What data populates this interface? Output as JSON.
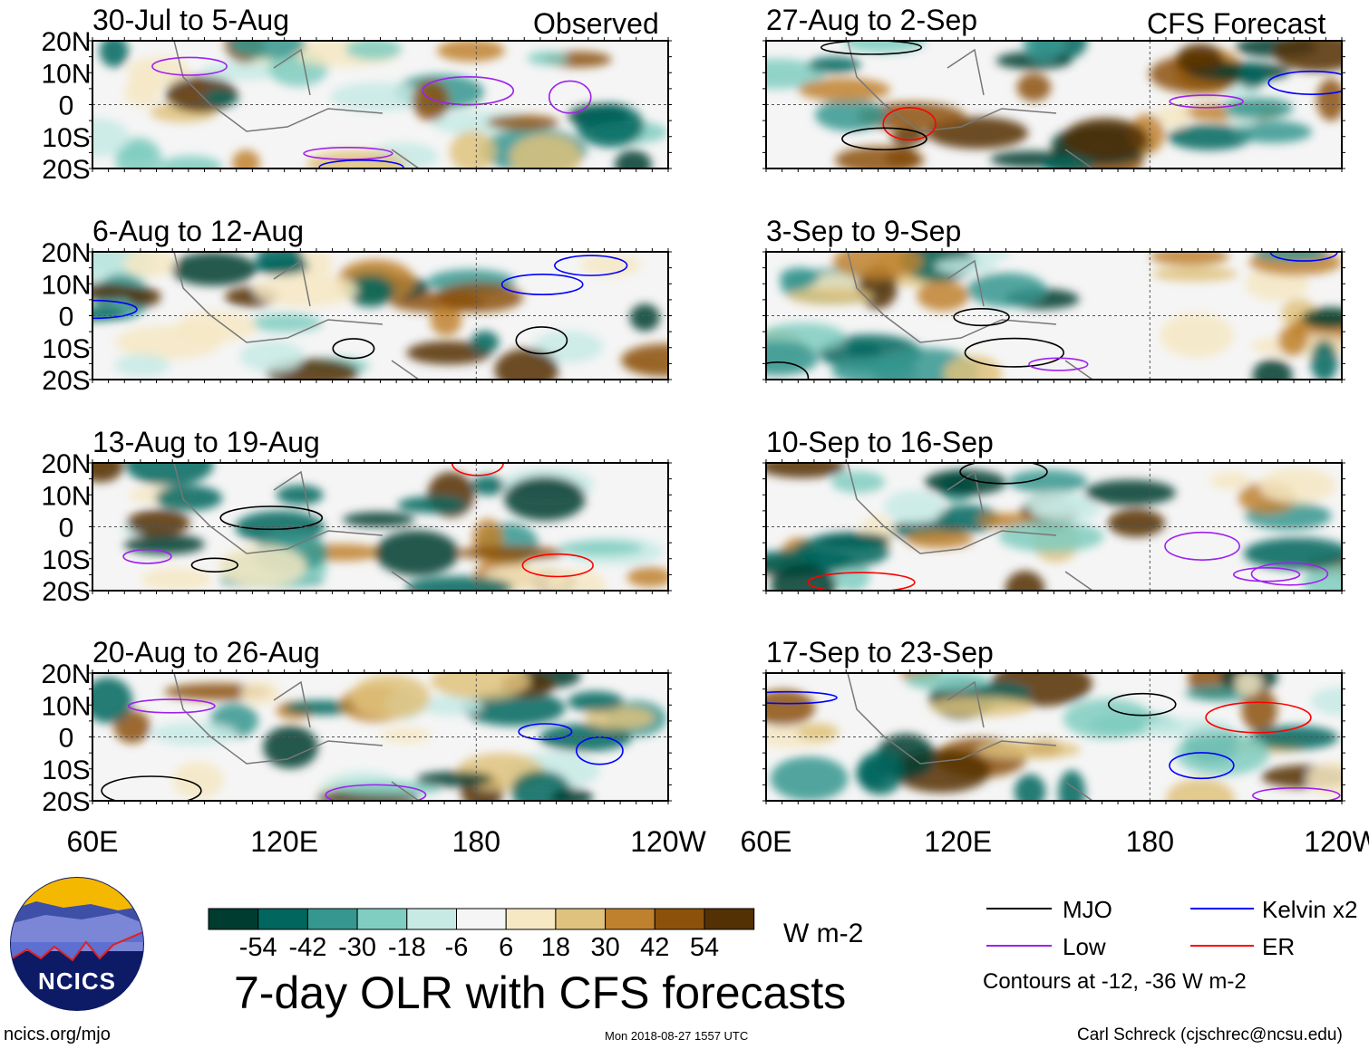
{
  "chart_data": {
    "type": "heatmap",
    "title": "7-day OLR with CFS forecasts",
    "units": "W m-2",
    "column_labels": [
      "Observed",
      "CFS Forecast"
    ],
    "panels_observed": [
      "30-Jul to 5-Aug",
      "6-Aug to 12-Aug",
      "13-Aug to 19-Aug",
      "20-Aug to 26-Aug"
    ],
    "panels_forecast": [
      "27-Aug to 2-Sep",
      "3-Sep to 9-Sep",
      "10-Sep to 16-Sep",
      "17-Sep to 23-Sep"
    ],
    "lat_ticks": [
      "20N",
      "10N",
      "0",
      "10S",
      "20S"
    ],
    "lon_ticks": [
      "60E",
      "120E",
      "180",
      "120W"
    ],
    "colorbar": {
      "levels": [
        "-54",
        "-42",
        "-30",
        "-18",
        "-6",
        "6",
        "18",
        "30",
        "42",
        "54"
      ],
      "colors": [
        "#003c30",
        "#01665e",
        "#35978f",
        "#80cdc1",
        "#c7eae5",
        "#f5f5f5",
        "#f6e8c3",
        "#dfc27d",
        "#bf812d",
        "#8c510a",
        "#543005"
      ]
    },
    "legend": [
      {
        "label": "MJO",
        "color": "#000000"
      },
      {
        "label": "Kelvin x2",
        "color": "#0000ff"
      },
      {
        "label": "Low",
        "color": "#a020f0"
      },
      {
        "label": "ER",
        "color": "#ff0000"
      }
    ],
    "contour_note": "Contours at -12, -36 W m-2"
  },
  "footer": {
    "logo_text": "NCICS",
    "url": "ncics.org/mjo",
    "timestamp": "Mon 2018-08-27 1557 UTC",
    "credit": "Carl Schreck (cjschrec@ncsu.edu)"
  }
}
